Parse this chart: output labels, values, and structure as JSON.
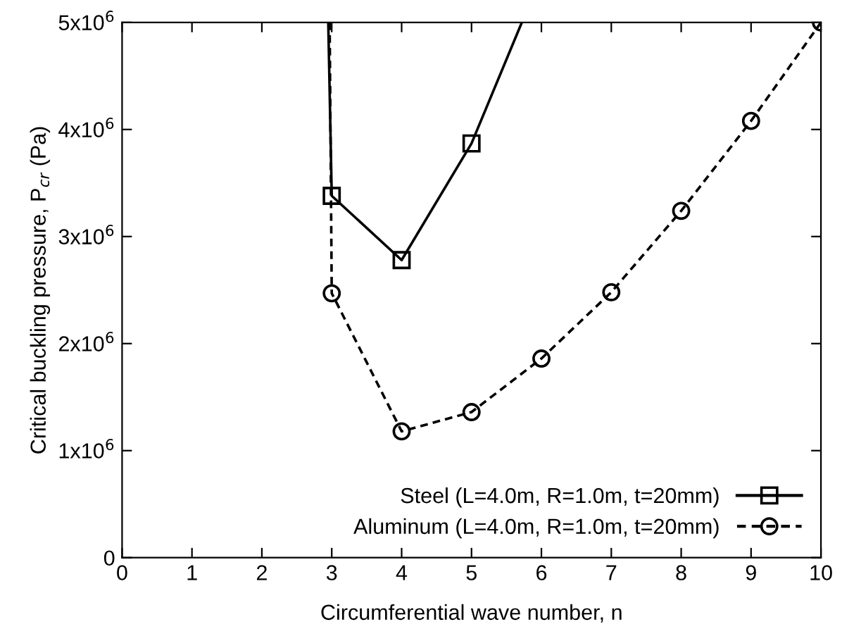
{
  "chart_data": {
    "type": "line",
    "xlabel": "Circumferential wave number, n",
    "ylabel": "Critical buckling pressure, P$_{cr}$ (Pa)",
    "xlim": [
      0,
      10
    ],
    "xticks": [
      0,
      1,
      2,
      3,
      4,
      5,
      6,
      7,
      8,
      9,
      10
    ],
    "ylim": [
      0,
      5000000
    ],
    "yticks": [
      {
        "value": 0,
        "label": "0"
      },
      {
        "value": 1000000,
        "label": "1x10$^{6}$"
      },
      {
        "value": 2000000,
        "label": "2x10$^{6}$"
      },
      {
        "value": 3000000,
        "label": "3x10$^{6}$"
      },
      {
        "value": 4000000,
        "label": "4x10$^{6}$"
      },
      {
        "value": 5000000,
        "label": "5x10$^{6}$"
      }
    ],
    "grid": false,
    "legend": "bottom right",
    "series": [
      {
        "name": "Steel (L=4.0m, R=1.0m, t=20mm)",
        "color": "#000000",
        "marker": "square",
        "line_style": "solid",
        "x": [
          2.95,
          3,
          4,
          5,
          5.72
        ],
        "values": [
          5000000,
          3380000,
          2780000,
          3870000,
          5000000
        ]
      },
      {
        "name": "Aluminum (L=4.0m, R=1.0m, t=20mm)",
        "color": "#000000",
        "marker": "circle",
        "line_style": "dashed",
        "x": [
          2.97,
          3,
          4,
          5,
          6,
          7,
          8,
          9,
          10
        ],
        "values": [
          5000000,
          2470000,
          1180000,
          1360000,
          1860000,
          2480000,
          3240000,
          4080000,
          5000000
        ]
      }
    ]
  }
}
